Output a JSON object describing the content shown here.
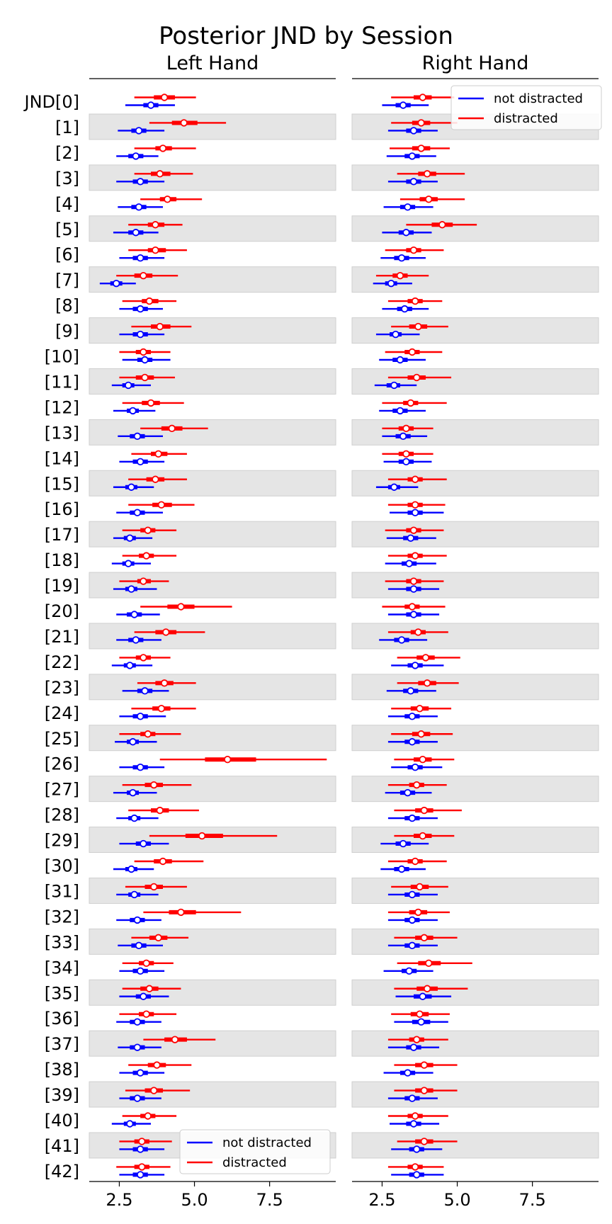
{
  "chart_data": {
    "type": "forest",
    "title": "Posterior JND by Session",
    "row_labels": [
      "JND[0]",
      "[1]",
      "[2]",
      "[3]",
      "[4]",
      "[5]",
      "[6]",
      "[7]",
      "[8]",
      "[9]",
      "[10]",
      "[11]",
      "[12]",
      "[13]",
      "[14]",
      "[15]",
      "[16]",
      "[17]",
      "[18]",
      "[19]",
      "[20]",
      "[21]",
      "[22]",
      "[23]",
      "[24]",
      "[25]",
      "[26]",
      "[27]",
      "[28]",
      "[29]",
      "[30]",
      "[31]",
      "[32]",
      "[33]",
      "[34]",
      "[35]",
      "[36]",
      "[37]",
      "[38]",
      "[39]",
      "[40]",
      "[41]",
      "[42]"
    ],
    "xlim": [
      1.5,
      9.7
    ],
    "xticks": [
      2.5,
      5.0,
      7.5
    ],
    "xtick_labels": [
      "2.5",
      "5.0",
      "7.5"
    ],
    "legend_labels": [
      "not distracted",
      "distracted"
    ],
    "colors": {
      "not distracted": "#0000ff",
      "distracted": "#ff0000"
    },
    "panels": [
      {
        "title": "Left Hand",
        "legend_position": "lower-right",
        "series": [
          {
            "name": "distracted",
            "median": [
              4.0,
              4.65,
              3.95,
              3.85,
              4.1,
              3.7,
              3.7,
              3.3,
              3.5,
              3.85,
              3.3,
              3.35,
              3.55,
              4.25,
              3.8,
              3.7,
              3.9,
              3.45,
              3.4,
              3.3,
              4.55,
              4.05,
              3.3,
              4.0,
              3.9,
              3.45,
              6.1,
              3.65,
              3.85,
              5.25,
              3.95,
              3.65,
              4.55,
              3.8,
              3.4,
              3.5,
              3.4,
              4.35,
              3.75,
              3.65,
              3.45,
              3.25,
              3.25
            ],
            "lo": [
              3.0,
              3.5,
              3.0,
              3.0,
              3.2,
              2.8,
              2.8,
              2.4,
              2.6,
              2.9,
              2.5,
              2.5,
              2.6,
              3.2,
              2.9,
              2.8,
              2.8,
              2.6,
              2.6,
              2.5,
              3.2,
              3.0,
              2.5,
              3.1,
              2.9,
              2.5,
              3.85,
              2.6,
              2.8,
              3.5,
              3.0,
              2.7,
              3.3,
              2.9,
              2.6,
              2.6,
              2.5,
              3.3,
              2.8,
              2.7,
              2.6,
              2.5,
              2.4
            ],
            "hi": [
              5.05,
              6.05,
              5.05,
              4.95,
              5.25,
              4.6,
              4.75,
              4.45,
              4.4,
              4.9,
              4.2,
              4.35,
              4.65,
              5.45,
              4.75,
              4.75,
              5.0,
              4.4,
              4.4,
              4.15,
              6.25,
              5.35,
              4.2,
              5.05,
              5.05,
              4.55,
              9.4,
              4.9,
              5.15,
              7.75,
              5.3,
              4.75,
              6.55,
              4.8,
              4.3,
              4.55,
              4.4,
              5.7,
              4.9,
              4.85,
              4.4,
              4.25,
              4.2
            ],
            "q25": [
              3.65,
              4.25,
              3.7,
              3.55,
              3.85,
              3.45,
              3.45,
              3.0,
              3.25,
              3.55,
              3.05,
              3.05,
              3.25,
              3.9,
              3.55,
              3.4,
              3.6,
              3.2,
              3.15,
              3.1,
              4.1,
              3.7,
              3.05,
              3.7,
              3.6,
              3.2,
              5.35,
              3.35,
              3.55,
              4.7,
              3.65,
              3.35,
              4.15,
              3.5,
              3.15,
              3.2,
              3.15,
              4.0,
              3.45,
              3.35,
              3.2,
              3.0,
              3.0
            ],
            "q75": [
              4.35,
              5.1,
              4.25,
              4.2,
              4.4,
              4.0,
              4.05,
              3.6,
              3.8,
              4.2,
              3.55,
              3.65,
              3.85,
              4.6,
              4.1,
              4.0,
              4.25,
              3.7,
              3.65,
              3.55,
              5.0,
              4.4,
              3.55,
              4.3,
              4.2,
              3.7,
              7.05,
              3.95,
              4.15,
              5.95,
              4.25,
              3.95,
              5.05,
              4.1,
              3.65,
              3.8,
              3.65,
              4.75,
              4.05,
              3.95,
              3.7,
              3.5,
              3.5
            ]
          },
          {
            "name": "not distracted",
            "median": [
              3.55,
              3.15,
              3.05,
              3.2,
              3.15,
              3.05,
              3.2,
              2.4,
              3.2,
              3.2,
              3.35,
              2.8,
              2.95,
              3.1,
              3.2,
              2.9,
              3.1,
              2.85,
              2.8,
              2.9,
              3.0,
              3.05,
              2.85,
              3.35,
              3.2,
              2.95,
              3.2,
              2.95,
              3.0,
              3.3,
              2.9,
              3.0,
              3.1,
              3.15,
              3.2,
              3.3,
              3.1,
              3.1,
              3.2,
              3.1,
              2.85,
              3.2,
              3.2
            ],
            "lo": [
              2.7,
              2.45,
              2.4,
              2.4,
              2.45,
              2.3,
              2.5,
              1.85,
              2.5,
              2.5,
              2.6,
              2.25,
              2.3,
              2.45,
              2.5,
              2.3,
              2.4,
              2.3,
              2.25,
              2.3,
              2.4,
              2.4,
              2.25,
              2.6,
              2.5,
              2.35,
              2.5,
              2.3,
              2.4,
              2.5,
              2.3,
              2.4,
              2.4,
              2.45,
              2.5,
              2.5,
              2.4,
              2.45,
              2.5,
              2.5,
              2.25,
              2.5,
              2.5
            ],
            "hi": [
              4.35,
              4.0,
              3.8,
              4.0,
              3.95,
              3.8,
              4.0,
              3.05,
              3.95,
              4.0,
              4.2,
              3.55,
              3.7,
              3.95,
              4.0,
              3.65,
              3.95,
              3.6,
              3.55,
              3.75,
              3.85,
              3.9,
              3.6,
              4.15,
              4.05,
              3.75,
              4.0,
              3.75,
              3.8,
              4.15,
              3.65,
              3.8,
              3.9,
              3.95,
              4.0,
              4.15,
              3.9,
              3.9,
              4.0,
              3.9,
              3.55,
              4.0,
              4.0
            ],
            "q25": [
              3.3,
              2.9,
              2.8,
              2.95,
              2.9,
              2.8,
              2.95,
              2.2,
              2.95,
              2.95,
              3.1,
              2.6,
              2.75,
              2.85,
              2.95,
              2.7,
              2.85,
              2.65,
              2.6,
              2.7,
              2.75,
              2.8,
              2.65,
              3.1,
              2.95,
              2.75,
              2.95,
              2.75,
              2.8,
              3.05,
              2.7,
              2.8,
              2.85,
              2.9,
              2.95,
              3.05,
              2.85,
              2.85,
              2.95,
              2.85,
              2.65,
              2.95,
              2.95
            ],
            "q75": [
              3.8,
              3.4,
              3.3,
              3.45,
              3.4,
              3.3,
              3.45,
              2.6,
              3.45,
              3.45,
              3.6,
              3.0,
              3.15,
              3.35,
              3.45,
              3.1,
              3.35,
              3.05,
              3.0,
              3.1,
              3.25,
              3.3,
              3.05,
              3.6,
              3.45,
              3.15,
              3.45,
              3.15,
              3.2,
              3.55,
              3.1,
              3.2,
              3.35,
              3.4,
              3.45,
              3.55,
              3.35,
              3.35,
              3.45,
              3.35,
              3.05,
              3.45,
              3.45
            ]
          }
        ]
      },
      {
        "title": "Right Hand",
        "legend_position": "upper-right",
        "series": [
          {
            "name": "distracted",
            "median": [
              3.85,
              3.8,
              3.8,
              4.0,
              4.05,
              4.5,
              3.55,
              3.1,
              3.6,
              3.7,
              3.5,
              3.65,
              3.45,
              3.3,
              3.3,
              3.6,
              3.6,
              3.55,
              3.6,
              3.55,
              3.5,
              3.7,
              3.95,
              4.0,
              3.75,
              3.8,
              3.85,
              3.65,
              3.9,
              3.85,
              3.6,
              3.75,
              3.7,
              3.9,
              4.05,
              4.0,
              3.75,
              3.65,
              3.9,
              3.9,
              3.6,
              3.9,
              3.6
            ],
            "lo": [
              2.8,
              2.8,
              2.75,
              3.0,
              3.1,
              3.3,
              2.6,
              2.3,
              2.7,
              2.8,
              2.6,
              2.7,
              2.5,
              2.5,
              2.5,
              2.7,
              2.7,
              2.6,
              2.7,
              2.6,
              2.5,
              2.7,
              3.0,
              3.0,
              2.8,
              2.8,
              2.9,
              2.7,
              2.9,
              2.9,
              2.7,
              2.8,
              2.7,
              2.9,
              3.0,
              2.9,
              2.8,
              2.7,
              2.9,
              2.9,
              2.7,
              3.0,
              2.7
            ],
            "hi": [
              4.9,
              5.0,
              4.75,
              5.25,
              5.25,
              5.65,
              4.55,
              4.05,
              4.5,
              4.7,
              4.5,
              4.8,
              4.65,
              4.2,
              4.2,
              4.65,
              4.6,
              4.55,
              4.65,
              4.55,
              4.6,
              4.7,
              5.1,
              5.05,
              4.8,
              4.85,
              4.9,
              4.65,
              5.15,
              4.9,
              4.65,
              4.7,
              4.75,
              5.0,
              5.5,
              5.35,
              4.75,
              4.7,
              5.0,
              5.0,
              4.7,
              5.0,
              4.55
            ],
            "q25": [
              3.55,
              3.5,
              3.5,
              3.7,
              3.75,
              4.15,
              3.3,
              2.85,
              3.35,
              3.4,
              3.25,
              3.35,
              3.2,
              3.05,
              3.05,
              3.35,
              3.35,
              3.3,
              3.35,
              3.3,
              3.25,
              3.45,
              3.65,
              3.7,
              3.45,
              3.5,
              3.55,
              3.4,
              3.6,
              3.55,
              3.35,
              3.45,
              3.4,
              3.6,
              3.7,
              3.65,
              3.45,
              3.4,
              3.6,
              3.6,
              3.35,
              3.6,
              3.35
            ],
            "q75": [
              4.15,
              4.1,
              4.1,
              4.3,
              4.35,
              4.85,
              3.8,
              3.35,
              3.85,
              4.0,
              3.75,
              3.95,
              3.7,
              3.55,
              3.55,
              3.85,
              3.85,
              3.8,
              3.85,
              3.8,
              3.75,
              3.95,
              4.25,
              4.3,
              4.05,
              4.1,
              4.15,
              3.9,
              4.2,
              4.15,
              3.85,
              4.05,
              4.0,
              4.2,
              4.45,
              4.35,
              4.05,
              3.9,
              4.2,
              4.2,
              3.85,
              4.2,
              3.85
            ]
          },
          {
            "name": "not distracted",
            "median": [
              3.2,
              3.55,
              3.5,
              3.55,
              3.35,
              3.3,
              3.15,
              2.8,
              3.25,
              2.95,
              3.1,
              2.9,
              3.1,
              3.2,
              3.3,
              2.9,
              3.6,
              3.45,
              3.4,
              3.55,
              3.55,
              3.15,
              3.6,
              3.45,
              3.5,
              3.5,
              3.6,
              3.35,
              3.5,
              3.2,
              3.15,
              3.5,
              3.5,
              3.5,
              3.4,
              3.85,
              3.8,
              3.55,
              3.35,
              3.5,
              3.55,
              3.65,
              3.65
            ],
            "lo": [
              2.5,
              2.7,
              2.65,
              2.7,
              2.55,
              2.5,
              2.45,
              2.2,
              2.5,
              2.3,
              2.4,
              2.25,
              2.4,
              2.5,
              2.55,
              2.3,
              2.75,
              2.65,
              2.6,
              2.7,
              2.7,
              2.4,
              2.8,
              2.65,
              2.7,
              2.7,
              2.8,
              2.6,
              2.7,
              2.45,
              2.45,
              2.7,
              2.7,
              2.7,
              2.55,
              2.95,
              2.9,
              2.7,
              2.55,
              2.7,
              2.75,
              2.8,
              2.8
            ],
            "hi": [
              4.05,
              4.35,
              4.3,
              4.35,
              4.2,
              4.15,
              3.95,
              3.5,
              4.05,
              3.75,
              3.95,
              3.65,
              3.95,
              4.0,
              4.15,
              3.7,
              4.55,
              4.3,
              4.3,
              4.4,
              4.4,
              4.0,
              4.55,
              4.3,
              4.35,
              4.35,
              4.5,
              4.15,
              4.35,
              4.05,
              3.95,
              4.35,
              4.35,
              4.35,
              4.2,
              4.8,
              4.7,
              4.4,
              4.2,
              4.35,
              4.4,
              4.5,
              4.55
            ],
            "q25": [
              2.95,
              3.3,
              3.25,
              3.3,
              3.1,
              3.05,
              2.9,
              2.6,
              3.0,
              2.75,
              2.85,
              2.65,
              2.85,
              2.95,
              3.05,
              2.7,
              3.35,
              3.2,
              3.15,
              3.3,
              3.3,
              2.9,
              3.35,
              3.2,
              3.25,
              3.25,
              3.35,
              3.1,
              3.25,
              2.95,
              2.9,
              3.25,
              3.25,
              3.25,
              3.15,
              3.55,
              3.5,
              3.3,
              3.1,
              3.25,
              3.3,
              3.4,
              3.4
            ],
            "q75": [
              3.45,
              3.8,
              3.75,
              3.8,
              3.6,
              3.55,
              3.4,
              3.0,
              3.5,
              3.15,
              3.35,
              3.1,
              3.35,
              3.45,
              3.55,
              3.1,
              3.85,
              3.7,
              3.65,
              3.8,
              3.8,
              3.4,
              3.85,
              3.7,
              3.75,
              3.75,
              3.85,
              3.6,
              3.75,
              3.45,
              3.4,
              3.75,
              3.75,
              3.75,
              3.65,
              4.15,
              4.1,
              3.8,
              3.6,
              3.75,
              3.8,
              3.9,
              3.9
            ]
          }
        ]
      }
    ]
  }
}
